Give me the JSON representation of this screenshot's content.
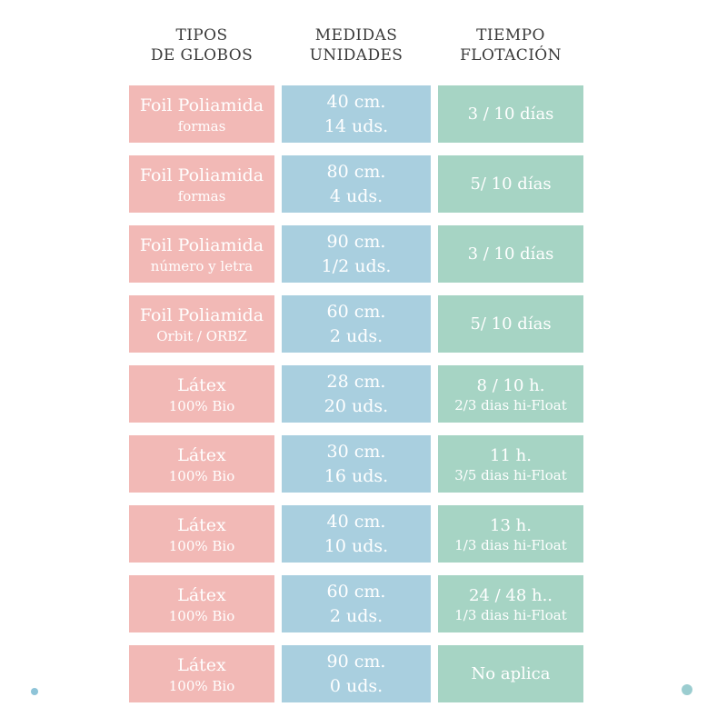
{
  "colors": {
    "background": "#ffffff",
    "type_cell": "#f2b9b6",
    "size_cell": "#a9cfdf",
    "float_cell": "#a6d4c4",
    "header_text": "#3b3b3b",
    "cell_text": "#ffffff",
    "dot_left": "#8ec4d8",
    "dot_right": "#9bcdd0"
  },
  "table": {
    "headers": [
      {
        "line1": "TIPOS",
        "line2": "DE GLOBOS"
      },
      {
        "line1": "MEDIDAS",
        "line2": "UNIDADES"
      },
      {
        "line1": "TIEMPO",
        "line2": "FLOTACIÓN"
      }
    ],
    "rows": [
      {
        "type": "Foil Poliamida",
        "type_sub": "formas",
        "size": "40 cm.",
        "units": "14 uds.",
        "float_time": "3 / 10 días",
        "float_sub": ""
      },
      {
        "type": "Foil Poliamida",
        "type_sub": "formas",
        "size": "80 cm.",
        "units": "4 uds.",
        "float_time": "5/ 10 días",
        "float_sub": ""
      },
      {
        "type": "Foil Poliamida",
        "type_sub": "número y letra",
        "size": "90 cm.",
        "units": "1/2 uds.",
        "float_time": "3 / 10 días",
        "float_sub": ""
      },
      {
        "type": "Foil Poliamida",
        "type_sub": "Orbit / ORBZ",
        "size": "60 cm.",
        "units": "2 uds.",
        "float_time": "5/ 10 días",
        "float_sub": ""
      },
      {
        "type": "Látex",
        "type_sub": "100% Bio",
        "size": "28 cm.",
        "units": "20 uds.",
        "float_time": "8 / 10 h.",
        "float_sub": "2/3 dias hi-Float"
      },
      {
        "type": "Látex",
        "type_sub": "100% Bio",
        "size": "30 cm.",
        "units": "16 uds.",
        "float_time": "11 h.",
        "float_sub": "3/5 dias hi-Float"
      },
      {
        "type": "Látex",
        "type_sub": "100% Bio",
        "size": "40 cm.",
        "units": "10 uds.",
        "float_time": "13 h.",
        "float_sub": "1/3 dias hi-Float"
      },
      {
        "type": "Látex",
        "type_sub": "100% Bio",
        "size": "60 cm.",
        "units": "2 uds.",
        "float_time": "24 / 48 h..",
        "float_sub": "1/3 dias hi-Float"
      },
      {
        "type": "Látex",
        "type_sub": "100% Bio",
        "size": "90 cm.",
        "units": "0 uds.",
        "float_time": "No aplica",
        "float_sub": ""
      }
    ]
  },
  "chart_data": {
    "type": "table",
    "columns": [
      "TIPOS DE GLOBOS",
      "MEDIDAS UNIDADES",
      "TIEMPO FLOTACIÓN"
    ],
    "rows": [
      [
        "Foil Poliamida — formas",
        "40 cm. / 14 uds.",
        "3 / 10 días"
      ],
      [
        "Foil Poliamida — formas",
        "80 cm. / 4 uds.",
        "5/ 10 días"
      ],
      [
        "Foil Poliamida — número y letra",
        "90 cm. / 1/2 uds.",
        "3 / 10 días"
      ],
      [
        "Foil Poliamida — Orbit / ORBZ",
        "60 cm. / 2 uds.",
        "5/ 10 días"
      ],
      [
        "Látex — 100% Bio",
        "28 cm. / 20 uds.",
        "8 / 10 h. — 2/3 dias hi-Float"
      ],
      [
        "Látex — 100% Bio",
        "30 cm. / 16 uds.",
        "11 h. — 3/5 dias hi-Float"
      ],
      [
        "Látex — 100% Bio",
        "40 cm. / 10 uds.",
        "13 h. — 1/3 dias hi-Float"
      ],
      [
        "Látex — 100% Bio",
        "60 cm. / 2 uds.",
        "24 / 48 h.. — 1/3 dias hi-Float"
      ],
      [
        "Látex — 100% Bio",
        "90 cm. / 0 uds.",
        "No aplica"
      ]
    ]
  }
}
